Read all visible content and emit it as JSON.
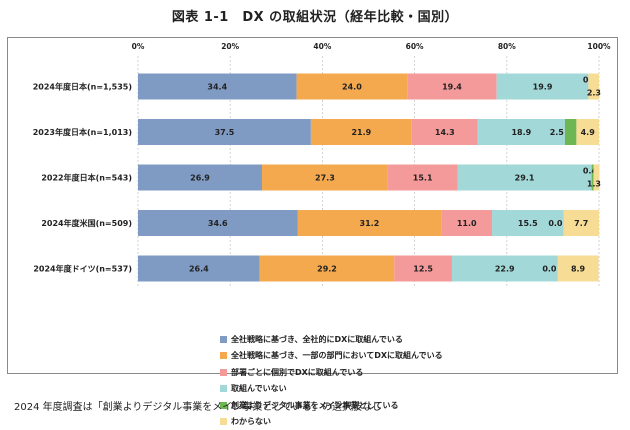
{
  "title": "図表 1-1　DX の取組状況（経年比較・国別）",
  "note": "2024 年度調査は「創業よりデジタル事業をメイン事業としている」の選択肢なし",
  "chart_data": {
    "type": "bar",
    "orientation": "horizontal",
    "stacked": true,
    "categories": [
      "2024年度日本(n=1,535)",
      "2023年度日本(n=1,013)",
      "2022年度日本(n=543)",
      "2024年度米国(n=509)",
      "2024年度ドイツ(n=537)"
    ],
    "x_tick_labels": [
      "0%",
      "20%",
      "40%",
      "60%",
      "80%",
      "100%"
    ],
    "xlim": [
      0,
      100
    ],
    "legend_position": "bottom",
    "series": [
      {
        "name": "全社戦略に基づき、全社的にDXに取組んでいる",
        "color": "#7f9bc4",
        "values": [
          34.4,
          37.5,
          26.9,
          34.6,
          26.4
        ],
        "labels": [
          "34.4",
          "37.5",
          "26.9",
          "34.6",
          "26.4"
        ]
      },
      {
        "name": "全社戦略に基づき、一部の部門においてDXに取組んでいる",
        "color": "#f4a94f",
        "values": [
          24.0,
          21.9,
          27.3,
          31.2,
          29.2
        ],
        "labels": [
          "24.0",
          "21.9",
          "27.3",
          "31.2",
          "29.2"
        ]
      },
      {
        "name": "部署ごとに個別でDXに取組んでいる",
        "color": "#f59a9a",
        "values": [
          19.4,
          14.3,
          15.1,
          11.0,
          12.5
        ],
        "labels": [
          "19.4",
          "14.3",
          "15.1",
          "11.0",
          "12.5"
        ]
      },
      {
        "name": "取組んでいない",
        "color": "#a3d8d9",
        "values": [
          19.9,
          18.9,
          29.1,
          15.5,
          22.9
        ],
        "labels": [
          "19.9",
          "18.9",
          "29.1",
          "15.5",
          "22.9"
        ]
      },
      {
        "name": "創業よりデジタル事業をメイン事業としている",
        "color": "#6cb654",
        "values": [
          0.0,
          2.5,
          0.4,
          0.0,
          0.0
        ],
        "labels": [
          "0.0",
          "2.5",
          "0.4",
          "0.0",
          "0.0"
        ]
      },
      {
        "name": "わからない",
        "color": "#f6dc95",
        "values": [
          2.3,
          4.9,
          1.3,
          7.7,
          8.9
        ],
        "labels": [
          "2.3",
          "4.9",
          "1.3",
          "7.7",
          "8.9"
        ]
      }
    ]
  }
}
